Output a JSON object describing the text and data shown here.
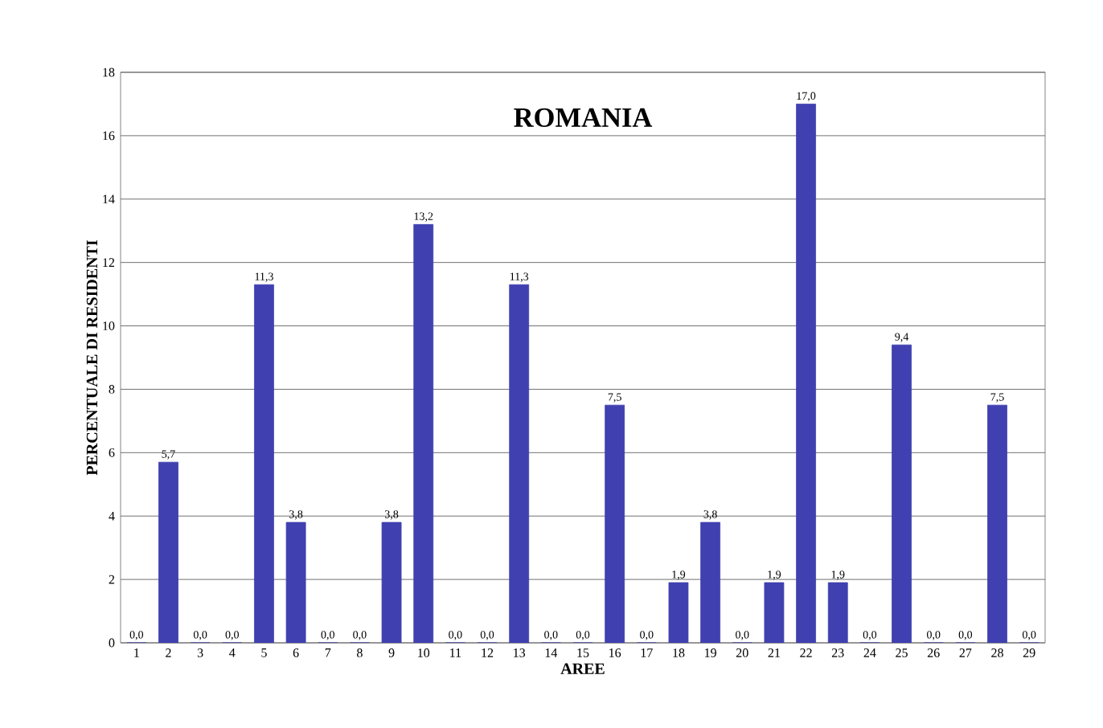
{
  "chart_data": {
    "type": "bar",
    "title": "ROMANIA",
    "xlabel": "AREE",
    "ylabel": "PERCENTUALE DI RESIDENTI",
    "categories": [
      "1",
      "2",
      "3",
      "4",
      "5",
      "6",
      "7",
      "8",
      "9",
      "10",
      "11",
      "12",
      "13",
      "14",
      "15",
      "16",
      "17",
      "18",
      "19",
      "20",
      "21",
      "22",
      "23",
      "24",
      "25",
      "26",
      "27",
      "28",
      "29"
    ],
    "values": [
      0,
      5.7,
      0,
      0,
      11.3,
      3.8,
      0,
      0,
      3.8,
      13.2,
      0,
      0,
      11.3,
      0,
      0,
      7.5,
      0,
      1.9,
      3.8,
      0,
      1.9,
      17.0,
      1.9,
      0,
      9.4,
      0,
      0,
      7.5,
      0
    ],
    "value_labels": [
      "0,0",
      "5,7",
      "0,0",
      "0,0",
      "11,3",
      "3,8",
      "0,0",
      "0,0",
      "3,8",
      "13,2",
      "0,0",
      "0,0",
      "11,3",
      "0,0",
      "0,0",
      "7,5",
      "0,0",
      "1,9",
      "3,8",
      "0,0",
      "1,9",
      "17,0",
      "1,9",
      "0,0",
      "9,4",
      "0,0",
      "0,0",
      "7,5",
      "0,0"
    ],
    "color": "#4040b0",
    "ylim": [
      0,
      18
    ],
    "yticks": [
      0,
      2,
      4,
      6,
      8,
      10,
      12,
      14,
      16,
      18
    ],
    "grid": "y"
  }
}
